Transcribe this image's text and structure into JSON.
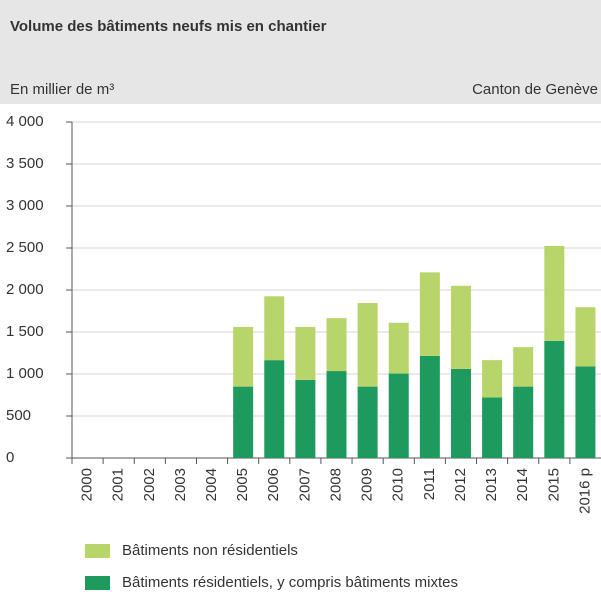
{
  "chart_data": {
    "type": "stacked_bar",
    "title": "Volume des bâtiments neufs mis en chantier",
    "subtitle": "En millier de m³",
    "region": "Canton de Genève",
    "categories": [
      "2000",
      "2001",
      "2002",
      "2003",
      "2004",
      "2005",
      "2006",
      "2007",
      "2008",
      "2009",
      "2010",
      "2011",
      "2012",
      "2013",
      "2014",
      "2015",
      "2016 p"
    ],
    "series": [
      {
        "name": "Bâtiments résidentiels, y compris bâtiments mixtes",
        "color": "#1f9a5e",
        "values": [
          null,
          null,
          null,
          null,
          null,
          850,
          1165,
          930,
          1035,
          850,
          1005,
          1215,
          1060,
          720,
          850,
          1395,
          1090
        ]
      },
      {
        "name": "Bâtiments non résidentiels",
        "color": "#b7d56b",
        "values": [
          null,
          null,
          null,
          null,
          null,
          710,
          760,
          630,
          630,
          995,
          605,
          995,
          990,
          445,
          470,
          1130,
          705
        ]
      }
    ],
    "ylim": [
      0,
      4000
    ],
    "yticks": [
      0,
      500,
      {
        "value": 1000,
        "label": "1 000"
      },
      {
        "value": 1500,
        "label": "1 500"
      },
      {
        "value": 2000,
        "label": "2 000"
      },
      {
        "value": 2500,
        "label": "2 500"
      },
      {
        "value": 3000,
        "label": "3 000"
      },
      {
        "value": 3500,
        "label": "3 500"
      },
      {
        "value": 4000,
        "label": "4 000"
      }
    ],
    "grid": true
  }
}
